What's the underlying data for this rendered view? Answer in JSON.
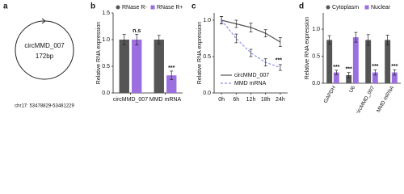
{
  "chart_data": [
    {
      "type": "circle",
      "panel": "a",
      "label": "circMMD_007",
      "size_label": "172bp",
      "locus": "chr17: 53478829-53481229"
    },
    {
      "type": "bar",
      "panel": "b",
      "y_label": "Relative RNA expression",
      "categories": [
        "circMMD_007",
        "MMD mRNA"
      ],
      "series": [
        {
          "name": "RNase R-",
          "color": "#555555",
          "marker": "circle",
          "values": [
            1.0,
            1.0
          ],
          "errors": [
            0.1,
            0.08
          ]
        },
        {
          "name": "RNase R+",
          "color": "#9b6fe0",
          "marker": "square",
          "values": [
            1.0,
            0.33
          ],
          "errors": [
            0.1,
            0.08
          ],
          "significance": [
            "n.s",
            "***"
          ]
        }
      ],
      "ylim": [
        0,
        1.5
      ],
      "yticks": [
        {
          "value": 0,
          "label": "0.0"
        },
        0.5,
        {
          "value": 1,
          "label": "1.0"
        },
        1.5
      ],
      "legend": "top"
    },
    {
      "type": "line",
      "panel": "c",
      "y_label": "Relative RNA expression",
      "categories": [
        "0h",
        "6h",
        "12h",
        "18h",
        "24h"
      ],
      "series": [
        {
          "name": "circMMD_007",
          "color": "#555555",
          "dash": false,
          "values": [
            1.0,
            0.95,
            0.9,
            0.82,
            0.7
          ],
          "errors": [
            0.05,
            0.05,
            0.06,
            0.05,
            0.06
          ]
        },
        {
          "name": "MMD mRNA",
          "color": "#8f8fef",
          "dash": true,
          "values": [
            1.0,
            0.75,
            0.55,
            0.42,
            0.35
          ],
          "errors": [
            0.05,
            0.06,
            0.05,
            0.05,
            0.04
          ],
          "significance": [
            null,
            null,
            null,
            null,
            "***"
          ]
        }
      ],
      "ylim": [
        0,
        1.1
      ],
      "yticks": [
        {
          "value": 0,
          "label": "0.0"
        },
        0.5,
        {
          "value": 1,
          "label": "1.0"
        }
      ],
      "legend": "lower left"
    },
    {
      "type": "bar",
      "panel": "d",
      "y_label": "Relative RNA expression",
      "categories": [
        "GAPDH",
        "U6",
        "circMMD_007",
        "MMD mRNA"
      ],
      "series": [
        {
          "name": "Cytoplasm",
          "color": "#555555",
          "marker": "circle",
          "values": [
            0.8,
            0.15,
            0.8,
            0.8
          ],
          "errors": [
            0.08,
            0.05,
            0.1,
            0.09
          ],
          "significance": [
            null,
            "***",
            null,
            null
          ]
        },
        {
          "name": "Nuclear",
          "color": "#9b6fe0",
          "marker": "square",
          "values": [
            0.2,
            0.85,
            0.2,
            0.2
          ],
          "errors": [
            0.04,
            0.09,
            0.05,
            0.05
          ],
          "significance": [
            "***",
            null,
            "***",
            "***"
          ]
        }
      ],
      "ylim": [
        0,
        1.3
      ],
      "yticks": [
        {
          "value": 0,
          "label": "0.0"
        },
        0.5,
        {
          "value": 1,
          "label": "1.0"
        }
      ],
      "legend": "top",
      "rotate_labels": true
    }
  ]
}
